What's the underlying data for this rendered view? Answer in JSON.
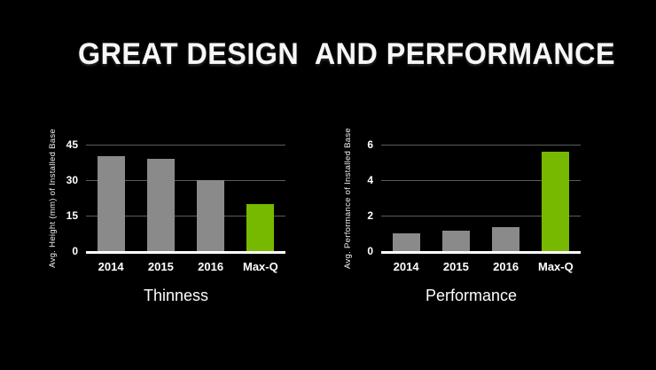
{
  "slide": {
    "title": "GREAT DESIGN  AND PERFORMANCE",
    "background": "#000000"
  },
  "colors": {
    "accent_green": "#76b900",
    "bar_gray": "#8a8a8a",
    "text": "#ffffff",
    "gridline": "#5c5c5c",
    "baseline": "#ffffff"
  },
  "chart_data": [
    {
      "type": "bar",
      "title": "Thinness",
      "ylabel": "Avg. Height (mm) of Installed Base",
      "categories": [
        "2014",
        "2015",
        "2016",
        "Max-Q"
      ],
      "values": [
        40,
        39,
        30,
        20
      ],
      "yticks": [
        0,
        15,
        30,
        45
      ],
      "ylim": [
        0,
        45
      ],
      "grid": true,
      "bar_colors": [
        "#8a8a8a",
        "#8a8a8a",
        "#8a8a8a",
        "#76b900"
      ]
    },
    {
      "type": "bar",
      "title": "Performance",
      "ylabel": "Avg. Performance of Installed Base",
      "categories": [
        "2014",
        "2015",
        "2016",
        "Max-Q"
      ],
      "values": [
        1.0,
        1.15,
        1.35,
        5.6
      ],
      "yticks": [
        0,
        2,
        4,
        6
      ],
      "ylim": [
        0,
        6
      ],
      "grid": true,
      "bar_colors": [
        "#8a8a8a",
        "#8a8a8a",
        "#8a8a8a",
        "#76b900"
      ]
    }
  ]
}
